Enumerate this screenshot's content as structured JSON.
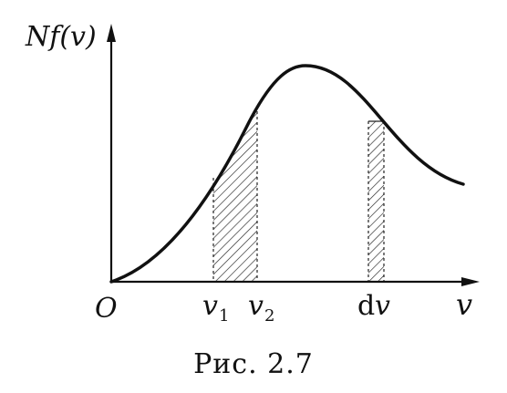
{
  "axes": {
    "y_label": "Nf(v)",
    "x_label": "v",
    "origin_label": "O"
  },
  "markers": {
    "v1_base": "v",
    "v1_sub": "1",
    "v2_base": "v",
    "v2_sub": "2",
    "dv_prefix": "d",
    "dv_var": "v"
  },
  "caption": "Рис. 2.7"
}
